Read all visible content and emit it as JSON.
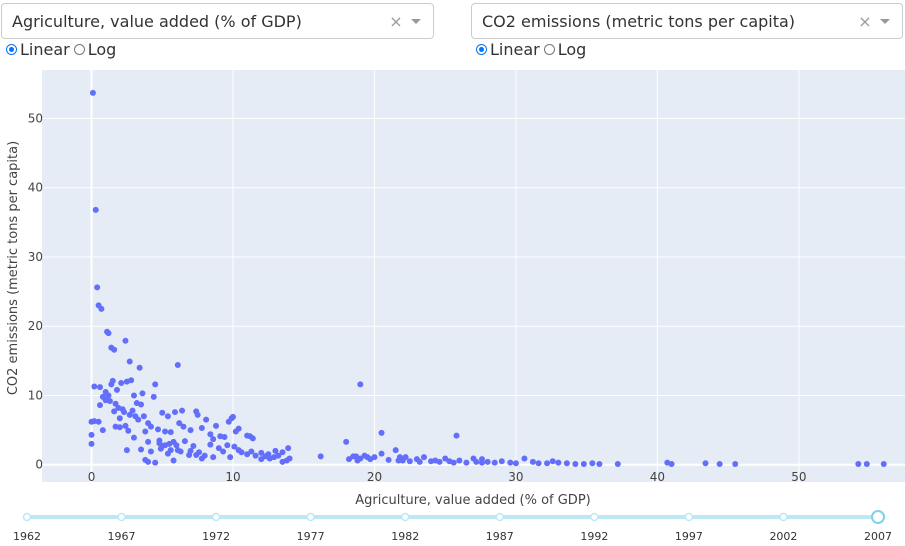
{
  "x_dropdown": {
    "value": "Agriculture, value added (% of GDP)",
    "clear": "×"
  },
  "y_dropdown": {
    "value": "CO2 emissions (metric tons per capita)",
    "clear": "×"
  },
  "x_scale": {
    "linear_label": "Linear",
    "log_label": "Log",
    "selected": "Linear"
  },
  "y_scale": {
    "linear_label": "Linear",
    "log_label": "Log",
    "selected": "Linear"
  },
  "colors": {
    "marker": "#636efa",
    "plot_bg": "#e5ecf6",
    "slider": "#bce8f5",
    "slider_handle": "#7fd1eb"
  },
  "chart_data": {
    "type": "scatter",
    "xlabel": "Agriculture, value added (% of GDP)",
    "ylabel": "CO2 emissions (metric tons per capita)",
    "xlim": [
      -3.5,
      57.5
    ],
    "ylim": [
      -2.5,
      57
    ],
    "xticks": [
      0,
      10,
      20,
      30,
      40,
      50
    ],
    "yticks": [
      0,
      10,
      20,
      30,
      40,
      50
    ],
    "points": [
      [
        0.1,
        53.7
      ],
      [
        0.3,
        36.8
      ],
      [
        0.4,
        25.6
      ],
      [
        0.5,
        23
      ],
      [
        0.7,
        22.5
      ],
      [
        1.1,
        19.2
      ],
      [
        1.2,
        19
      ],
      [
        1.4,
        16.9
      ],
      [
        1.6,
        16.6
      ],
      [
        2.4,
        17.9
      ],
      [
        2.7,
        14.9
      ],
      [
        3.4,
        14
      ],
      [
        6.1,
        14.4
      ],
      [
        19,
        11.6
      ],
      [
        0,
        6.2
      ],
      [
        0.2,
        6.3
      ],
      [
        0.2,
        11.3
      ],
      [
        0.5,
        6.2
      ],
      [
        0.6,
        11.2
      ],
      [
        0.6,
        8.6
      ],
      [
        0.8,
        9.8
      ],
      [
        0.8,
        5
      ],
      [
        1,
        9.3
      ],
      [
        1,
        10.5
      ],
      [
        1.2,
        10
      ],
      [
        1.3,
        9.2
      ],
      [
        1.4,
        11.6
      ],
      [
        1.5,
        12.1
      ],
      [
        1.6,
        7.7
      ],
      [
        1.7,
        8.8
      ],
      [
        1.7,
        5.5
      ],
      [
        1.8,
        10.8
      ],
      [
        1.9,
        8.2
      ],
      [
        2,
        6.7
      ],
      [
        2,
        5.4
      ],
      [
        2.1,
        11.8
      ],
      [
        2.2,
        8
      ],
      [
        2.3,
        7.6
      ],
      [
        2.4,
        5.6
      ],
      [
        2.5,
        12
      ],
      [
        2.6,
        4.9
      ],
      [
        2.7,
        7.2
      ],
      [
        2.8,
        12.2
      ],
      [
        2.9,
        7.8
      ],
      [
        3,
        10
      ],
      [
        3.1,
        7
      ],
      [
        3.2,
        8.9
      ],
      [
        3.3,
        6.5
      ],
      [
        3.5,
        8.7
      ],
      [
        3.6,
        10.3
      ],
      [
        3.7,
        7
      ],
      [
        3.8,
        4.8
      ],
      [
        4,
        6
      ],
      [
        4.2,
        5.5
      ],
      [
        4.4,
        9.8
      ],
      [
        4.5,
        11.6
      ],
      [
        4.7,
        5.1
      ],
      [
        4.8,
        3.5
      ],
      [
        5,
        7.5
      ],
      [
        5.2,
        4.8
      ],
      [
        5.4,
        7
      ],
      [
        5.5,
        3
      ],
      [
        5.6,
        4.7
      ],
      [
        5.9,
        7.6
      ],
      [
        6.2,
        6
      ],
      [
        6.4,
        7.8
      ],
      [
        6.5,
        5.5
      ],
      [
        7,
        5
      ],
      [
        7.4,
        7.7
      ],
      [
        7.5,
        7.2
      ],
      [
        7.8,
        5.3
      ],
      [
        8.1,
        6.5
      ],
      [
        8.4,
        4.4
      ],
      [
        8.6,
        3.7
      ],
      [
        8.8,
        5.6
      ],
      [
        9.1,
        4.1
      ],
      [
        9.4,
        4
      ],
      [
        9.7,
        6.2
      ],
      [
        9.9,
        6.7
      ],
      [
        10,
        6.9
      ],
      [
        10.2,
        4.8
      ],
      [
        10.4,
        5.2
      ],
      [
        11,
        4.2
      ],
      [
        11.4,
        3.8
      ],
      [
        11.2,
        4.1
      ],
      [
        12,
        1.7
      ],
      [
        12.5,
        1.5
      ],
      [
        13,
        2
      ],
      [
        13.5,
        1.8
      ],
      [
        13.9,
        2.4
      ],
      [
        14,
        0.9
      ],
      [
        0,
        3
      ],
      [
        0,
        4.3
      ],
      [
        2.5,
        2.1
      ],
      [
        3,
        3.9
      ],
      [
        3.5,
        2.2
      ],
      [
        4,
        3.3
      ],
      [
        4.2,
        1.9
      ],
      [
        4.8,
        3.1
      ],
      [
        4.9,
        2.3
      ],
      [
        5,
        2.7
      ],
      [
        5.2,
        2.8
      ],
      [
        5.4,
        1.6
      ],
      [
        5.6,
        2.1
      ],
      [
        5.8,
        3.3
      ],
      [
        6,
        2.8
      ],
      [
        6.1,
        2.1
      ],
      [
        6.3,
        1.9
      ],
      [
        6.6,
        3.4
      ],
      [
        6.9,
        1.4
      ],
      [
        7,
        2
      ],
      [
        7.2,
        2.7
      ],
      [
        7.4,
        1.4
      ],
      [
        7.6,
        1.8
      ],
      [
        7.8,
        0.9
      ],
      [
        8,
        1.3
      ],
      [
        8.4,
        2.9
      ],
      [
        8.6,
        1.1
      ],
      [
        9,
        2.4
      ],
      [
        9.3,
        1.9
      ],
      [
        9.6,
        2.8
      ],
      [
        9.8,
        1.1
      ],
      [
        10.1,
        2.6
      ],
      [
        10.4,
        2.1
      ],
      [
        10.6,
        1.8
      ],
      [
        11,
        1.5
      ],
      [
        11.3,
        1.9
      ],
      [
        11.6,
        1.3
      ],
      [
        12,
        0.8
      ],
      [
        12.3,
        1.2
      ],
      [
        12.6,
        0.9
      ],
      [
        12.9,
        1.1
      ],
      [
        13.2,
        1.3
      ],
      [
        13.5,
        0.4
      ],
      [
        13.8,
        0.6
      ],
      [
        4,
        0.4
      ],
      [
        4.5,
        0.3
      ],
      [
        3.8,
        0.7
      ],
      [
        5.8,
        0.6
      ],
      [
        16.2,
        1.2
      ],
      [
        18,
        3.3
      ],
      [
        18.2,
        0.8
      ],
      [
        18.5,
        1.2
      ],
      [
        18.8,
        0.6
      ],
      [
        19,
        0.9
      ],
      [
        19.3,
        1.3
      ],
      [
        19.7,
        0.8
      ],
      [
        20,
        1.1
      ],
      [
        20.5,
        1.6
      ],
      [
        20.5,
        4.6
      ],
      [
        21,
        0.7
      ],
      [
        21.5,
        2.1
      ],
      [
        21.8,
        1.1
      ],
      [
        22,
        0.6
      ],
      [
        22.5,
        0.5
      ],
      [
        23,
        0.8
      ],
      [
        23.2,
        0.4
      ],
      [
        23.5,
        1.1
      ],
      [
        24,
        0.5
      ],
      [
        24.3,
        0.6
      ],
      [
        25,
        0.9
      ],
      [
        25.3,
        0.5
      ],
      [
        25.6,
        0.3
      ],
      [
        25.8,
        4.2
      ],
      [
        26,
        0.6
      ],
      [
        26.5,
        0.3
      ],
      [
        27,
        0.9
      ],
      [
        27.2,
        0.4
      ],
      [
        27.6,
        0.3
      ],
      [
        28,
        0.4
      ],
      [
        28.5,
        0.3
      ],
      [
        29,
        0.5
      ],
      [
        29.6,
        0.3
      ],
      [
        30,
        0.2
      ],
      [
        30.6,
        0.9
      ],
      [
        31.2,
        0.4
      ],
      [
        31.6,
        0.2
      ],
      [
        32.2,
        0.2
      ],
      [
        32.6,
        0.5
      ],
      [
        33,
        0.3
      ],
      [
        33.6,
        0.2
      ],
      [
        34.2,
        0.1
      ],
      [
        34.8,
        0.1
      ],
      [
        35.4,
        0.2
      ],
      [
        35.9,
        0.1
      ],
      [
        37.2,
        0.1
      ],
      [
        40.7,
        0.3
      ],
      [
        41,
        0.1
      ],
      [
        43.4,
        0.2
      ],
      [
        44.4,
        0.1
      ],
      [
        45.5,
        0.1
      ],
      [
        54.2,
        0.1
      ],
      [
        54.8,
        0.1
      ],
      [
        56,
        0.1
      ],
      [
        22.2,
        1.1
      ],
      [
        21.7,
        0.6
      ],
      [
        19.5,
        1.1
      ],
      [
        24.6,
        0.4
      ],
      [
        27.6,
        0.8
      ],
      [
        18.7,
        1.2
      ]
    ],
    "slider": {
      "years": [
        "1962",
        "1967",
        "1972",
        "1977",
        "1982",
        "1987",
        "1992",
        "1997",
        "2002",
        "2007"
      ],
      "selected": "2007"
    }
  }
}
